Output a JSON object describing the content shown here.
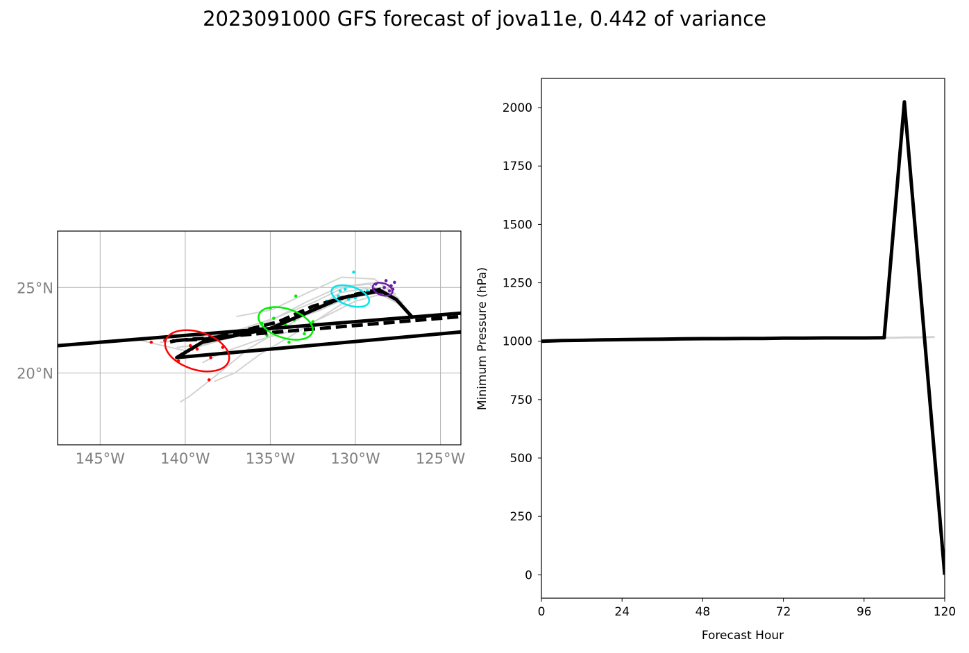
{
  "figure": {
    "title": "2023091000 GFS forecast of jova11e, 0.442 of variance"
  },
  "chart_data": [
    {
      "type": "map",
      "extent": {
        "lon": [
          -147.5,
          -123.8
        ],
        "lat": [
          15.8,
          28.3
        ]
      },
      "lon_ticks": [
        -145,
        -140,
        -135,
        -130,
        -125
      ],
      "lon_tick_labels": [
        "145°W",
        "140°W",
        "135°W",
        "130°W",
        "125°W"
      ],
      "lat_ticks": [
        20,
        25
      ],
      "lat_tick_labels": [
        "20°N",
        "25°N"
      ],
      "grid": true,
      "ensemble_color": "#d3d3d3",
      "ensemble_tracks": [
        [
          [
            -127.4,
            24.3
          ],
          [
            -128.6,
            25.3
          ],
          [
            -130.5,
            25.1
          ],
          [
            -132.3,
            24.2
          ],
          [
            -134.5,
            23.3
          ],
          [
            -136.6,
            22.6
          ],
          [
            -138.8,
            22.0
          ],
          [
            -141.5,
            21.8
          ]
        ],
        [
          [
            -127.2,
            24.1
          ],
          [
            -128.4,
            24.9
          ],
          [
            -130.2,
            24.6
          ],
          [
            -132.0,
            23.7
          ],
          [
            -134.2,
            22.9
          ],
          [
            -136.4,
            22.3
          ],
          [
            -138.7,
            21.7
          ],
          [
            -140.5,
            21.5
          ]
        ],
        [
          [
            -127.0,
            23.8
          ],
          [
            -128.5,
            24.6
          ],
          [
            -130.0,
            24.2
          ],
          [
            -131.8,
            23.3
          ],
          [
            -133.6,
            22.5
          ],
          [
            -135.8,
            21.9
          ],
          [
            -137.8,
            21.2
          ],
          [
            -139.0,
            20.6
          ]
        ],
        [
          [
            -127.6,
            24.6
          ],
          [
            -128.9,
            25.5
          ],
          [
            -130.8,
            25.6
          ],
          [
            -132.8,
            24.7
          ],
          [
            -134.9,
            23.7
          ],
          [
            -137.0,
            23.3
          ]
        ],
        [
          [
            -127.3,
            24.0
          ],
          [
            -128.7,
            24.8
          ],
          [
            -130.4,
            24.3
          ],
          [
            -132.1,
            23.2
          ],
          [
            -133.9,
            22.1
          ],
          [
            -135.6,
            21.1
          ],
          [
            -137.1,
            20.0
          ],
          [
            -138.3,
            19.5
          ]
        ],
        [
          [
            -127.5,
            24.4
          ],
          [
            -129.0,
            25.0
          ],
          [
            -130.9,
            24.7
          ],
          [
            -132.6,
            23.6
          ],
          [
            -134.6,
            22.4
          ],
          [
            -136.3,
            21.4
          ],
          [
            -138.0,
            20.0
          ],
          [
            -139.8,
            18.6
          ],
          [
            -140.3,
            18.3
          ]
        ],
        [
          [
            -127.8,
            24.5
          ],
          [
            -129.2,
            25.2
          ],
          [
            -131.0,
            25.0
          ],
          [
            -133.0,
            24.1
          ],
          [
            -135.1,
            23.0
          ],
          [
            -137.6,
            22.0
          ],
          [
            -140.0,
            21.3
          ],
          [
            -142.6,
            21.9
          ]
        ],
        [
          [
            -127.1,
            23.9
          ],
          [
            -128.3,
            24.7
          ],
          [
            -130.1,
            24.5
          ],
          [
            -131.9,
            23.8
          ],
          [
            -133.8,
            23.1
          ],
          [
            -135.9,
            22.6
          ],
          [
            -138.1,
            22.2
          ],
          [
            -140.8,
            21.9
          ]
        ]
      ],
      "deterministic_track": [
        [
          -126.6,
          23.2
        ],
        [
          -127.6,
          24.3
        ],
        [
          -128.5,
          24.8
        ],
        [
          -130.8,
          24.4
        ],
        [
          -135.0,
          22.6
        ],
        [
          -139.0,
          21.8
        ],
        [
          -140.5,
          20.9
        ],
        [
          -123.8,
          22.4
        ]
      ],
      "ensemble_mean_track": [
        [
          -128.5,
          24.9
        ],
        [
          -130.0,
          24.6
        ],
        [
          -132.5,
          23.9
        ],
        [
          -134.5,
          23.0
        ],
        [
          -136.5,
          22.5
        ],
        [
          -138.5,
          22.0
        ],
        [
          -140.5,
          21.9
        ],
        [
          -141.0,
          21.8
        ]
      ],
      "long_track_upper": [
        [
          -147.5,
          21.6
        ],
        [
          -123.8,
          23.5
        ]
      ],
      "long_track_dashed": [
        [
          -140.5,
          21.9
        ],
        [
          -123.8,
          23.3
        ]
      ],
      "scatter_groups": [
        {
          "color": "#6a1fa0",
          "center": [
            -128.4,
            24.9
          ],
          "ellipse": [
            0.6,
            0.35
          ],
          "points": [
            [
              -128.2,
              25.4
            ],
            [
              -128.8,
              25.2
            ],
            [
              -127.7,
              25.3
            ],
            [
              -128.5,
              24.6
            ],
            [
              -128.0,
              24.8
            ],
            [
              -128.9,
              24.9
            ],
            [
              -128.3,
              25.0
            ],
            [
              -127.9,
              25.1
            ],
            [
              -128.6,
              24.7
            ],
            [
              -128.1,
              24.6
            ],
            [
              -127.8,
              24.9
            ]
          ]
        },
        {
          "color": "#00e5ee",
          "center": [
            -130.3,
            24.5
          ],
          "ellipse": [
            1.15,
            0.55
          ],
          "points": [
            [
              -130.1,
              25.9
            ],
            [
              -131.4,
              24.1
            ],
            [
              -130.6,
              24.9
            ],
            [
              -129.5,
              24.7
            ],
            [
              -130.0,
              24.4
            ],
            [
              -131.0,
              24.5
            ],
            [
              -129.8,
              24.6
            ],
            [
              -130.4,
              24.3
            ],
            [
              -130.9,
              24.8
            ],
            [
              -131.7,
              24.2
            ],
            [
              -129.3,
              24.8
            ]
          ]
        },
        {
          "color": "#00ee00",
          "center": [
            -134.1,
            22.9
          ],
          "ellipse": [
            1.65,
            0.85
          ],
          "points": [
            [
              -133.5,
              24.5
            ],
            [
              -135.0,
              23.8
            ],
            [
              -135.5,
              22.9
            ],
            [
              -134.6,
              22.6
            ],
            [
              -134.1,
              22.8
            ],
            [
              -133.6,
              23.1
            ],
            [
              -132.5,
              23.0
            ],
            [
              -133.0,
              22.3
            ],
            [
              -133.9,
              21.8
            ],
            [
              -134.8,
              23.2
            ],
            [
              -134.3,
              22.4
            ],
            [
              -135.2,
              22.2
            ],
            [
              -132.8,
              22.7
            ]
          ]
        },
        {
          "color": "#ff0000",
          "center": [
            -139.3,
            21.3
          ],
          "ellipse": [
            1.95,
            1.1
          ],
          "points": [
            [
              -140.7,
              21.9
            ],
            [
              -142.0,
              21.8
            ],
            [
              -139.6,
              21.4
            ],
            [
              -139.7,
              21.6
            ],
            [
              -139.5,
              22.0
            ],
            [
              -138.5,
              20.9
            ],
            [
              -137.8,
              21.5
            ],
            [
              -140.4,
              20.7
            ],
            [
              -138.6,
              19.6
            ],
            [
              -140.2,
              21.1
            ],
            [
              -139.3,
              21.4
            ],
            [
              -141.2,
              21.9
            ]
          ]
        }
      ]
    },
    {
      "type": "line",
      "xlabel": "Forecast Hour",
      "ylabel": "Minimum Pressure (hPa)",
      "xlim": [
        0,
        120
      ],
      "ylim": [
        -100,
        2125
      ],
      "x_ticks": [
        0,
        24,
        48,
        72,
        96,
        120
      ],
      "y_ticks": [
        0,
        250,
        500,
        750,
        1000,
        1250,
        1500,
        1750,
        2000
      ],
      "series": [
        {
          "color": "#d3d3d3",
          "x": [
            0,
            102,
            105,
            108,
            111,
            114,
            117
          ],
          "y": [
            1000,
            1015,
            1015,
            1016,
            1016,
            1017,
            1018
          ]
        },
        {
          "color": "#000000",
          "x": [
            0,
            6,
            12,
            18,
            24,
            30,
            36,
            42,
            48,
            54,
            60,
            66,
            72,
            78,
            84,
            90,
            96,
            102,
            108,
            120
          ],
          "y": [
            1000,
            1003,
            1004,
            1006,
            1007,
            1008,
            1009,
            1010,
            1011,
            1011,
            1012,
            1012,
            1013,
            1013,
            1014,
            1014,
            1014,
            1015,
            2025,
            0
          ]
        }
      ]
    }
  ]
}
